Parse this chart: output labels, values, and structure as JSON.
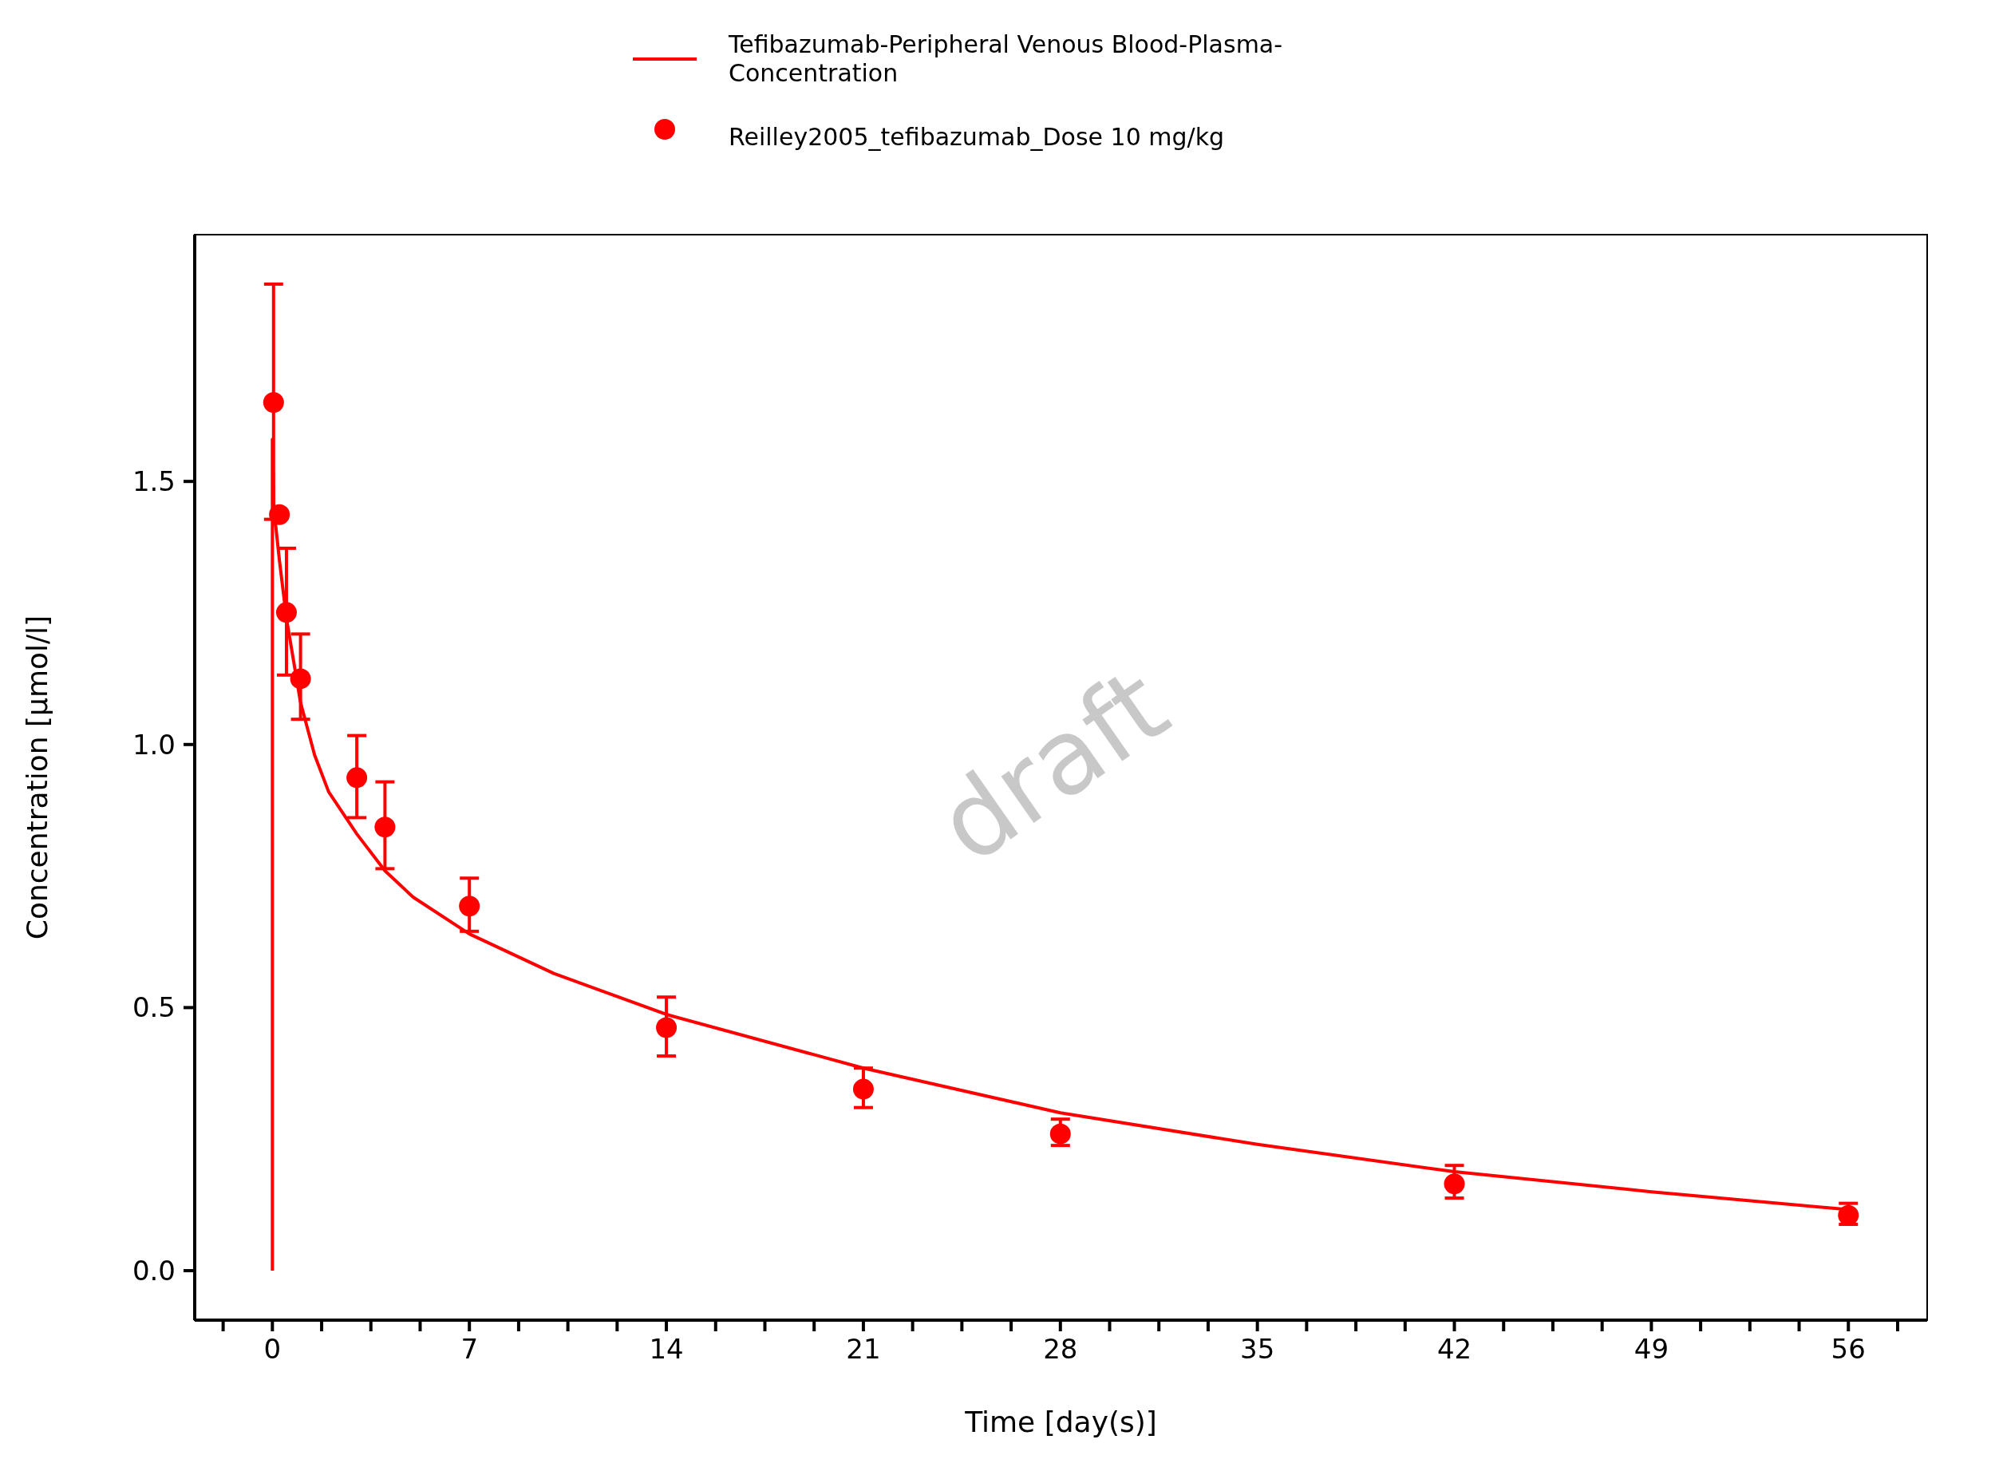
{
  "chart_data": {
    "type": "line",
    "xlabel": "Time [day(s)]",
    "ylabel": "Concentration [µmol/l]",
    "xlim": [
      -2.76,
      58.8
    ],
    "ylim": [
      -0.094,
      1.969
    ],
    "xticks": [
      {
        "value": -1.75,
        "label": null
      },
      0,
      {
        "value": 1.75,
        "label": null
      },
      {
        "value": 3.5,
        "label": null
      },
      {
        "value": 5.25,
        "label": null
      },
      7,
      {
        "value": 8.75,
        "label": null
      },
      {
        "value": 10.5,
        "label": null
      },
      {
        "value": 12.25,
        "label": null
      },
      14,
      {
        "value": 15.75,
        "label": null
      },
      {
        "value": 17.5,
        "label": null
      },
      {
        "value": 19.25,
        "label": null
      },
      21,
      {
        "value": 22.75,
        "label": null
      },
      {
        "value": 24.5,
        "label": null
      },
      {
        "value": 26.25,
        "label": null
      },
      28,
      {
        "value": 29.75,
        "label": null
      },
      {
        "value": 31.5,
        "label": null
      },
      {
        "value": 33.25,
        "label": null
      },
      35,
      {
        "value": 36.75,
        "label": null
      },
      {
        "value": 38.5,
        "label": null
      },
      {
        "value": 40.25,
        "label": null
      },
      42,
      {
        "value": 43.75,
        "label": null
      },
      {
        "value": 45.5,
        "label": null
      },
      {
        "value": 47.25,
        "label": null
      },
      49,
      {
        "value": 50.75,
        "label": null
      },
      {
        "value": 52.5,
        "label": null
      },
      {
        "value": 54.25,
        "label": null
      },
      56,
      {
        "value": 57.75,
        "label": null
      }
    ],
    "yticks": [
      {
        "value": 0,
        "label": "0.0"
      },
      {
        "value": 0.5,
        "label": "0.5"
      },
      {
        "value": 1,
        "label": "1.0"
      },
      {
        "value": 1.5,
        "label": "1.5"
      }
    ],
    "legend": "top",
    "grid": false,
    "annotations": [
      "draft"
    ],
    "series": [
      {
        "name": "Tefibazumab-Peripheral Venous Blood-Plasma-Concentration",
        "color": "#ff0000",
        "line_style": "solid",
        "x": [
          0,
          0,
          0.05,
          0.25,
          0.5,
          1,
          1.5,
          2,
          3,
          4,
          5,
          7,
          10,
          14,
          21,
          28,
          35,
          42,
          49,
          56
        ],
        "values": [
          0,
          1.58,
          1.45,
          1.35,
          1.24,
          1.08,
          0.98,
          0.91,
          0.83,
          0.76,
          0.71,
          0.64,
          0.565,
          0.487,
          0.385,
          0.3,
          0.24,
          0.188,
          0.15,
          0.116
        ]
      },
      {
        "type": "scatter",
        "name": "Reilley2005_tefibazumab_Dose 10 mg/kg",
        "color": "#ff0000",
        "marker": "circle",
        "x": [
          0.0417,
          0.25,
          0.5,
          1,
          3,
          4,
          7,
          14,
          21,
          28,
          42,
          56
        ],
        "values": [
          1.65,
          1.437,
          1.251,
          1.125,
          0.937,
          0.843,
          0.693,
          0.462,
          0.345,
          0.26,
          0.165,
          0.105
        ],
        "errors": [
          [
            1.428,
            1.875
          ],
          null,
          [
            1.132,
            1.373
          ],
          [
            1.048,
            1.21
          ],
          [
            0.861,
            1.017
          ],
          [
            0.764,
            0.929
          ],
          [
            0.645,
            0.746
          ],
          [
            0.408,
            0.52
          ],
          [
            0.31,
            0.385
          ],
          [
            0.238,
            0.288
          ],
          [
            0.138,
            0.2
          ],
          [
            0.088,
            0.128
          ]
        ]
      }
    ]
  }
}
